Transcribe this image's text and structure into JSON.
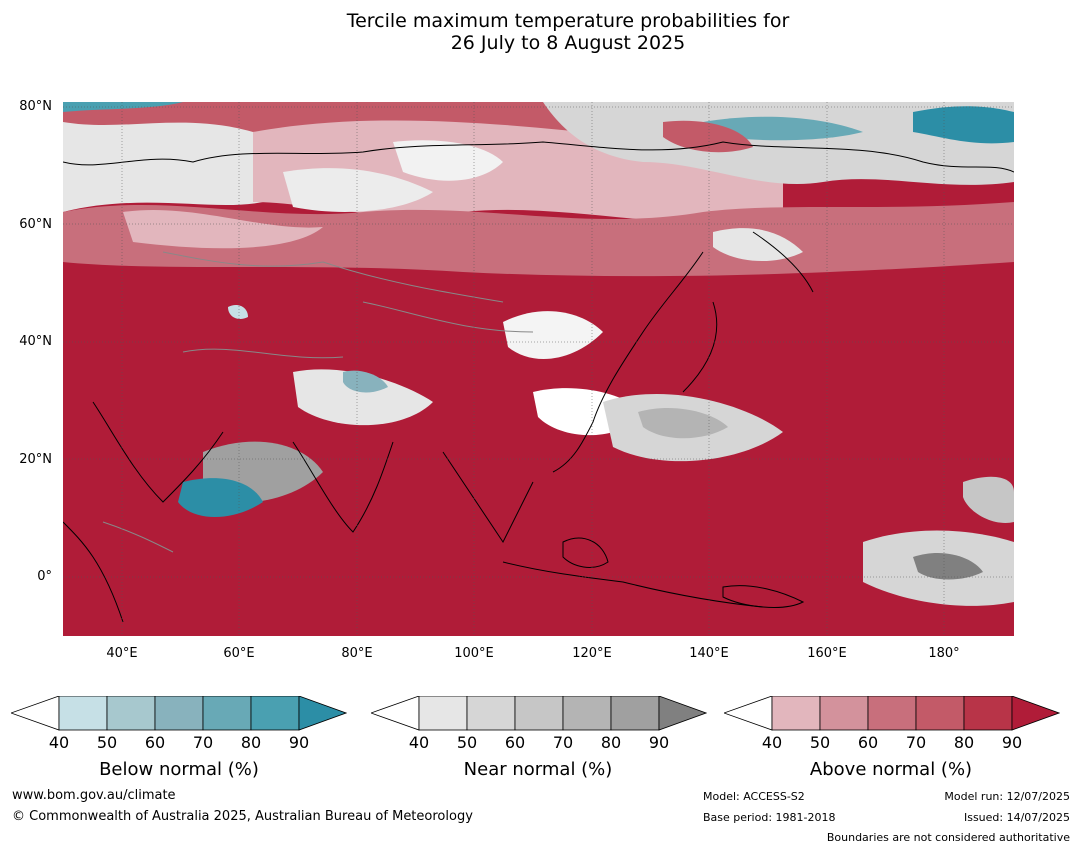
{
  "title": {
    "line1": "Tercile maximum temperature probabilities for",
    "line2": "26 July to 8 August 2025"
  },
  "map": {
    "lat_labels": [
      "80°N",
      "60°N",
      "40°N",
      "20°N",
      "0°"
    ],
    "lon_labels": [
      "40°E",
      "60°E",
      "80°E",
      "100°E",
      "120°E",
      "140°E",
      "160°E",
      "180°"
    ],
    "ocean_and_default_color": "#b01c38"
  },
  "colorbars": [
    {
      "label": "Below normal (%)",
      "ticks": [
        "40",
        "50",
        "60",
        "70",
        "80",
        "90"
      ],
      "colors": [
        "#ffffff",
        "#c6e0e6",
        "#a7c8ce",
        "#88b2bd",
        "#68a9b6",
        "#4aa0b1",
        "#2c8ea6"
      ]
    },
    {
      "label": "Near normal (%)",
      "ticks": [
        "40",
        "50",
        "60",
        "70",
        "80",
        "90"
      ],
      "colors": [
        "#ffffff",
        "#e6e6e6",
        "#d6d6d6",
        "#c6c6c6",
        "#b4b4b4",
        "#a0a0a0",
        "#808080"
      ]
    },
    {
      "label": "Above normal (%)",
      "ticks": [
        "40",
        "50",
        "60",
        "70",
        "80",
        "90"
      ],
      "colors": [
        "#ffffff",
        "#e2b6bd",
        "#d3929c",
        "#c86f7c",
        "#c35a68",
        "#b83448",
        "#b01c38"
      ]
    }
  ],
  "footer": {
    "website": "www.bom.gov.au/climate",
    "copyright": "© Commonwealth of Australia 2025, Australian Bureau of Meteorology",
    "model": "Model: ACCESS-S2",
    "base_period": "Base period: 1981-2018",
    "model_run": "Model run: 12/07/2025",
    "issued": "Issued: 14/07/2025",
    "boundaries_note": "Boundaries are not considered authoritative"
  }
}
